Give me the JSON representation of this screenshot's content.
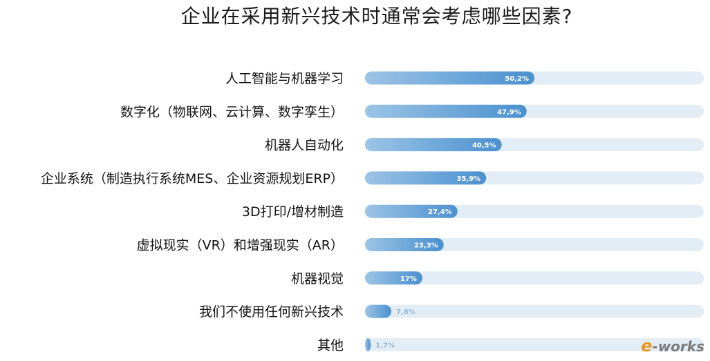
{
  "chart_data": {
    "type": "bar",
    "orientation": "horizontal",
    "title": "企业在采用新兴技术时通常会考虑哪些因素?",
    "categories": [
      "人工智能与机器学习",
      "数字化（物联网、云计算、数字孪生）",
      "机器人自动化",
      "企业系统（制造执行系统MES、企业资源规划ERP）",
      "3D打印/增材制造",
      "虚拟现实（VR）和增强现实（AR）",
      "机器视觉",
      "我们不使用任何新兴技术",
      "其他"
    ],
    "values": [
      50.2,
      47.9,
      40.5,
      35.9,
      27.4,
      23.3,
      17,
      7.8,
      1.7
    ],
    "value_labels": [
      "50,2%",
      "47,9%",
      "40,5%",
      "35,9%",
      "27,4%",
      "23,3%",
      "17%",
      "7,8%",
      "1,7%"
    ],
    "xlim": [
      0,
      100
    ],
    "colors": {
      "bar_start": "#9cc4e6",
      "bar_end": "#4a90cf",
      "track": "#e3edf6",
      "label_inside": "#ffffff",
      "label_outside": "#9ab6cf",
      "category_text": "#111111"
    },
    "grid": false,
    "legend": "none"
  },
  "watermark": {
    "prefix": "e",
    "text": "-works"
  }
}
